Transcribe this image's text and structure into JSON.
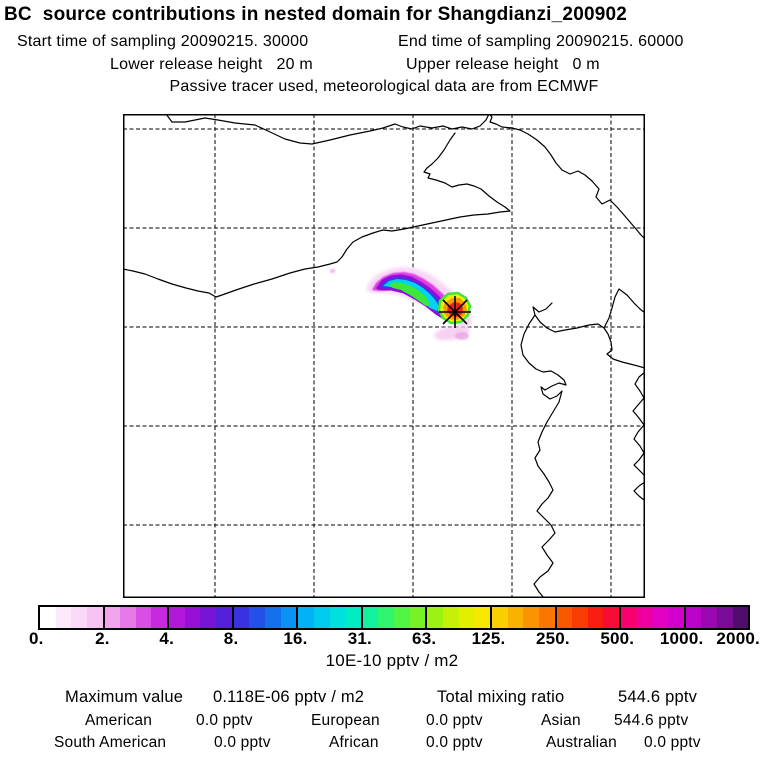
{
  "header": {
    "title": "BC  source contributions in nested domain for Shangdianzi_200902",
    "start_time": "Start time of sampling 20090215. 30000",
    "end_time": "End time of sampling 20090215. 60000",
    "lower_release": "Lower release height   20 m",
    "upper_release": "Upper release height   0 m",
    "tracer_note": "Passive tracer used, meteorological data are from ECMWF"
  },
  "colorbar": {
    "levels": [
      "0.",
      "2.",
      "4.",
      "8.",
      "16.",
      "31.",
      "63.",
      "125.",
      "250.",
      "500.",
      "1000.",
      "2000."
    ],
    "units": "10E-10 pptv / m2",
    "segments": [
      [
        "#ffffff",
        "#fceafb",
        "#f9d8f8",
        "#f5c2f3"
      ],
      [
        "#f0a4ec",
        "#e67ae9",
        "#d94fe5",
        "#c729e0"
      ],
      [
        "#b218da",
        "#9710d6",
        "#7814d6",
        "#5520da"
      ],
      [
        "#3832e0",
        "#2450e8",
        "#1670ee",
        "#0a92f4"
      ],
      [
        "#02b2f6",
        "#00ccf0",
        "#00e0de",
        "#00ecc2"
      ],
      [
        "#12f29e",
        "#2ef46e",
        "#50f442",
        "#76f226"
      ],
      [
        "#9cf211",
        "#c4f106",
        "#e4ef00",
        "#f6e800"
      ],
      [
        "#f9cf00",
        "#fab200",
        "#fb9400",
        "#fb7600"
      ],
      [
        "#fa5800",
        "#f93b04",
        "#f81f10",
        "#f70c38"
      ],
      [
        "#f60270",
        "#ef009e",
        "#e300c0",
        "#d200cc"
      ],
      [
        "#bc03cc",
        "#9c07b4",
        "#7a0b96",
        "#500d6e"
      ]
    ]
  },
  "stats": {
    "maximum_label": "Maximum value",
    "maximum_value": "0.118E-06 pptv / m2",
    "total_label": "Total mixing ratio",
    "total_value": "544.6 pptv",
    "contributions": [
      {
        "label": "American",
        "value": "0.0 pptv"
      },
      {
        "label": "European",
        "value": "0.0 pptv"
      },
      {
        "label": "Asian",
        "value": "544.6 pptv"
      },
      {
        "label": "South American",
        "value": "0.0 pptv"
      },
      {
        "label": "African",
        "value": "0.0 pptv"
      },
      {
        "label": "Australian",
        "value": "0.0 pptv"
      }
    ]
  },
  "chart_data": {
    "type": "heatmap",
    "title": "BC source contributions in nested domain for Shangdianzi_200902",
    "subtitle_lines": [
      "Start time of sampling 20090215. 30000",
      "End time of sampling 20090215. 60000",
      "Lower release height 20 m",
      "Upper release height 0 m",
      "Passive tracer used, meteorological data are from ECMWF"
    ],
    "receptor": "Shangdianzi",
    "colorbar_levels": [
      0,
      2,
      4,
      8,
      16,
      31,
      63,
      125,
      250,
      500,
      1000,
      2000
    ],
    "units": "10E-10 pptv / m2",
    "maximum_value": "0.118E-06 pptv / m2",
    "total_mixing_ratio_pptv": 544.6,
    "contributions_pptv": {
      "American": 0.0,
      "European": 0.0,
      "Asian": 544.6,
      "South American": 0.0,
      "African": 0.0,
      "Australian": 0.0
    },
    "legend_position": "bottom",
    "grid": "dashed graticule, 5x5 cells",
    "plume": "elongated NW-SE plume upwind of receptor star marker; red/orange maximum at the marker, green-cyan-blue-magenta-pale halo to the northwest"
  }
}
